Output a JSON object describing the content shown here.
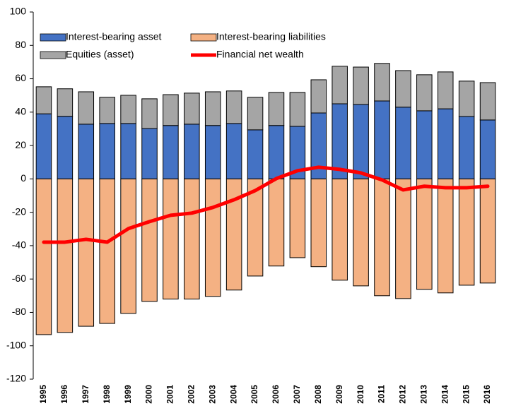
{
  "chart_data": {
    "type": "bar",
    "stacked": true,
    "categories": [
      "1995",
      "1996",
      "1997",
      "1998",
      "1999",
      "2000",
      "2001",
      "2002",
      "2003",
      "2004",
      "2005",
      "2006",
      "2007",
      "2008",
      "2009",
      "2010",
      "2011",
      "2012",
      "2013",
      "2014",
      "2015",
      "2016"
    ],
    "series": [
      {
        "name": "Interest-bearing asset",
        "color": "#4472c4",
        "type": "bar",
        "values": [
          39,
          37.5,
          32.8,
          33.2,
          33.2,
          30.2,
          32,
          32.8,
          32,
          33.2,
          29.4,
          32,
          31.5,
          39.5,
          45,
          44.6,
          46.7,
          43,
          40.8,
          42,
          37.4,
          35.3
        ]
      },
      {
        "name": "Interest-bearing liabilities",
        "color": "#f4b183",
        "type": "bar",
        "values": [
          -93.3,
          -92,
          -88.3,
          -86.6,
          -80.6,
          -73.4,
          -72,
          -72,
          -70.4,
          -66.6,
          -58.2,
          -52.2,
          -47.2,
          -52.6,
          -60.7,
          -64.1,
          -70,
          -71.7,
          -66.2,
          -68.3,
          -63.7,
          -62.4
        ]
      },
      {
        "name": "Equities (asset)",
        "color": "#a5a5a5",
        "type": "bar",
        "values": [
          16.2,
          16.5,
          19.4,
          15.7,
          16.9,
          17.8,
          18.5,
          18.6,
          20.2,
          19.5,
          19.5,
          19.8,
          20.3,
          19.9,
          22.5,
          22.4,
          22.5,
          21.9,
          21.6,
          22.1,
          21.2,
          22.4
        ]
      },
      {
        "name": "Financial net wealth",
        "color": "#ff0000",
        "type": "line",
        "values": [
          -37.9,
          -37.9,
          -36.2,
          -37.9,
          -29.8,
          -25.6,
          -21.8,
          -20.5,
          -17.1,
          -12.5,
          -7,
          0.2,
          4.9,
          7,
          5.7,
          3.6,
          -0.6,
          -6.6,
          -4.4,
          -5.3,
          -5.3,
          -4.4
        ]
      }
    ],
    "ylim": [
      -120,
      100
    ],
    "yticks": [
      -120,
      -100,
      -80,
      -60,
      -40,
      -20,
      0,
      20,
      40,
      60,
      80,
      100
    ],
    "grid": false,
    "legend": "top-left"
  }
}
